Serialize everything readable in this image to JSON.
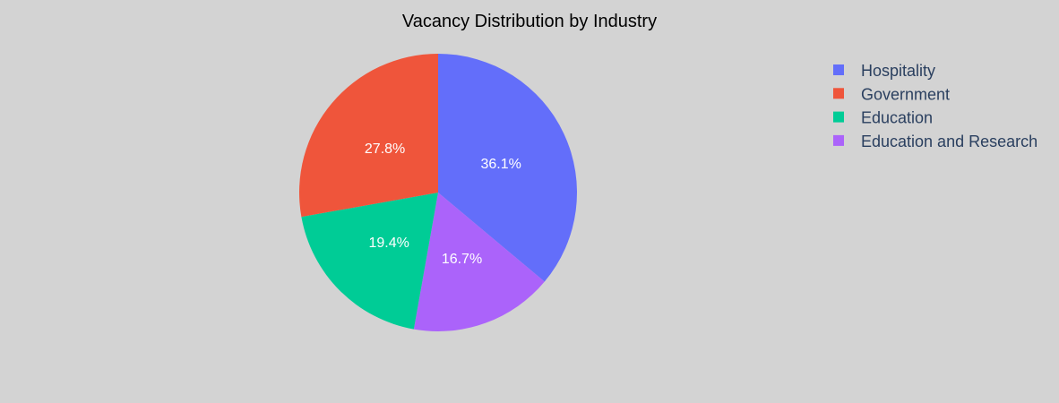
{
  "chart_data": {
    "type": "pie",
    "title": "Vacancy Distribution by Industry",
    "categories": [
      "Hospitality",
      "Government",
      "Education",
      "Education and Research"
    ],
    "values": [
      36.1,
      27.8,
      19.4,
      16.7
    ],
    "labels": [
      "36.1%",
      "27.8%",
      "19.4%",
      "16.7%"
    ],
    "colors": [
      "#636efa",
      "#ef553b",
      "#00cc96",
      "#ab63fa"
    ],
    "direction": "clockwise",
    "legend_placement": "top-right",
    "background": "#d3d3d3"
  }
}
